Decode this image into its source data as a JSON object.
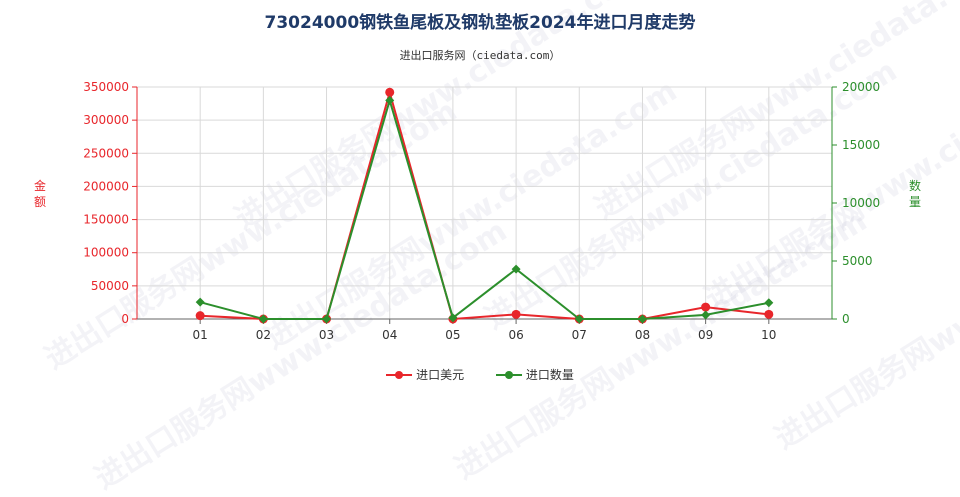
{
  "chart_data": {
    "type": "line",
    "title": "73024000钢铁鱼尾板及钢轨垫板2024年进口月度走势",
    "subtitle": "进出口服务网（ciedata.com）",
    "watermark": "进出口服务网www.ciedata.com",
    "categories": [
      "01",
      "02",
      "03",
      "04",
      "05",
      "06",
      "07",
      "08",
      "09",
      "10"
    ],
    "ylabel_left": "金额",
    "ylabel_right": "数量",
    "ylim_left": [
      0,
      350000
    ],
    "ylim_right": [
      0,
      20000
    ],
    "yticks_left": [
      "0",
      "50000",
      "100000",
      "150000",
      "200000",
      "250000",
      "300000",
      "350000"
    ],
    "yticks_right": [
      "0",
      "5000",
      "10000",
      "15000",
      "20000"
    ],
    "grid": true,
    "legend_position": "bottom",
    "series": [
      {
        "name": "进口美元",
        "axis": "left",
        "color": "#e8262b",
        "values": [
          5000,
          0,
          0,
          342000,
          0,
          7000,
          0,
          0,
          18000,
          7000
        ]
      },
      {
        "name": "进口数量",
        "axis": "right",
        "color": "#2c8f2c",
        "values": [
          1450,
          0,
          0,
          18850,
          100,
          4300,
          0,
          0,
          350,
          1400
        ]
      }
    ]
  }
}
